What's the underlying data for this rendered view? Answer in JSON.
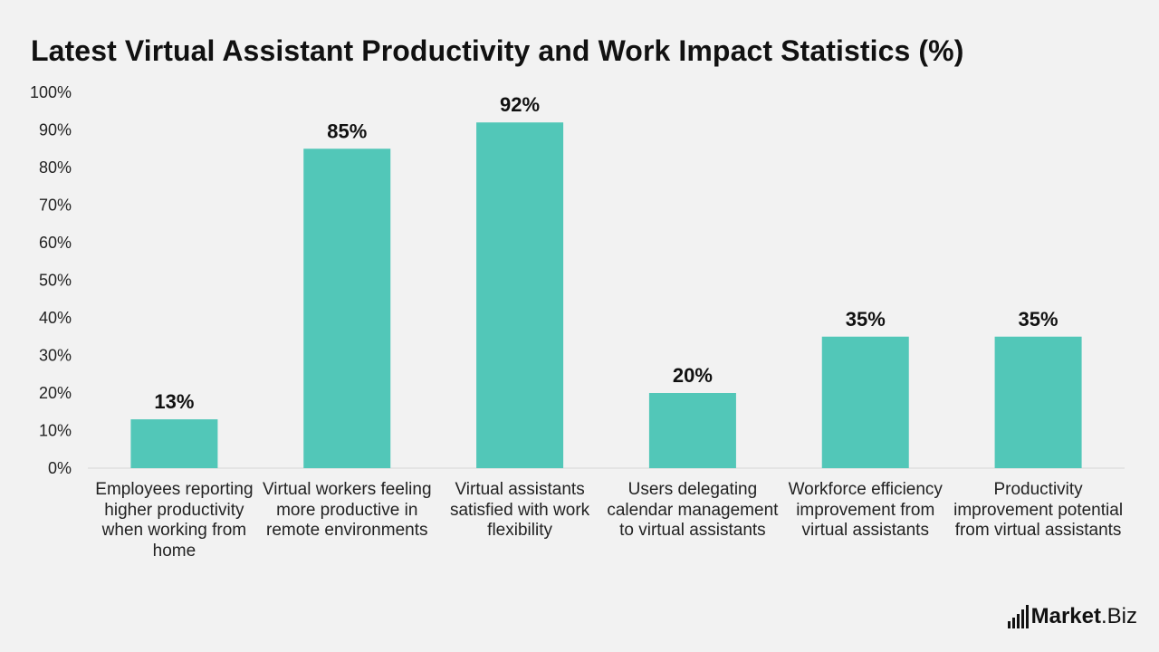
{
  "chart_data": {
    "type": "bar",
    "title": "Latest Virtual Assistant Productivity and Work Impact Statistics (%)",
    "categories": [
      "Employees reporting higher productivity when working from home",
      "Virtual workers feeling more productive in remote environments",
      "Virtual assistants satisfied with work flexibility",
      "Users delegating calendar management to virtual assistants",
      "Workforce efficiency improvement from virtual assistants",
      "Productivity improvement potential from virtual assistants"
    ],
    "values": [
      13,
      85,
      92,
      20,
      35,
      35
    ],
    "data_labels": [
      "13%",
      "85%",
      "92%",
      "20%",
      "35%",
      "35%"
    ],
    "ylim": [
      0,
      100
    ],
    "yticks": [
      "0%",
      "10%",
      "20%",
      "30%",
      "40%",
      "50%",
      "60%",
      "70%",
      "80%",
      "90%",
      "100%"
    ],
    "xlabel": "",
    "ylabel": "",
    "grid": false,
    "legend": "none",
    "bar_color": "#52c7b8"
  },
  "brand": {
    "bold": "Market",
    "thin": ".Biz"
  }
}
